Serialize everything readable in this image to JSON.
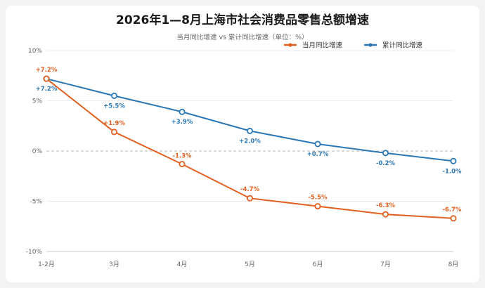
{
  "chart_data": {
    "type": "line",
    "title": "2026年1—8月上海市社会消费品零售总额增速",
    "subtitle": "当月同比增速 vs 累计同比增速（单位：%）",
    "categories": [
      "1-2月",
      "3月",
      "4月",
      "5月",
      "6月",
      "7月",
      "8月"
    ],
    "ylim": [
      -10,
      10
    ],
    "yticks": [
      10,
      5,
      0,
      -5,
      -10
    ],
    "ytick_labels": [
      "10%",
      "5%",
      "0%",
      "-5%",
      "-10%"
    ],
    "grid": true,
    "reference_line": 0,
    "legend_position": "top-right",
    "series": [
      {
        "name": "当月同比增速",
        "color": "#e2601f",
        "values": [
          7.2,
          1.9,
          -1.3,
          -4.7,
          -5.5,
          -6.3,
          -6.7
        ],
        "labels": [
          "+7.2%",
          "+1.9%",
          "-1.3%",
          "-4.7%",
          "-5.5%",
          "-6.3%",
          "-6.7%"
        ]
      },
      {
        "name": "累计同比增速",
        "color": "#2a77b5",
        "values": [
          7.2,
          5.5,
          3.9,
          2.0,
          0.7,
          -0.2,
          -1.0
        ],
        "labels": [
          "+7.2%",
          "+5.5%",
          "+3.9%",
          "+2.0%",
          "+0.7%",
          "-0.2%",
          "-1.0%"
        ]
      }
    ]
  }
}
